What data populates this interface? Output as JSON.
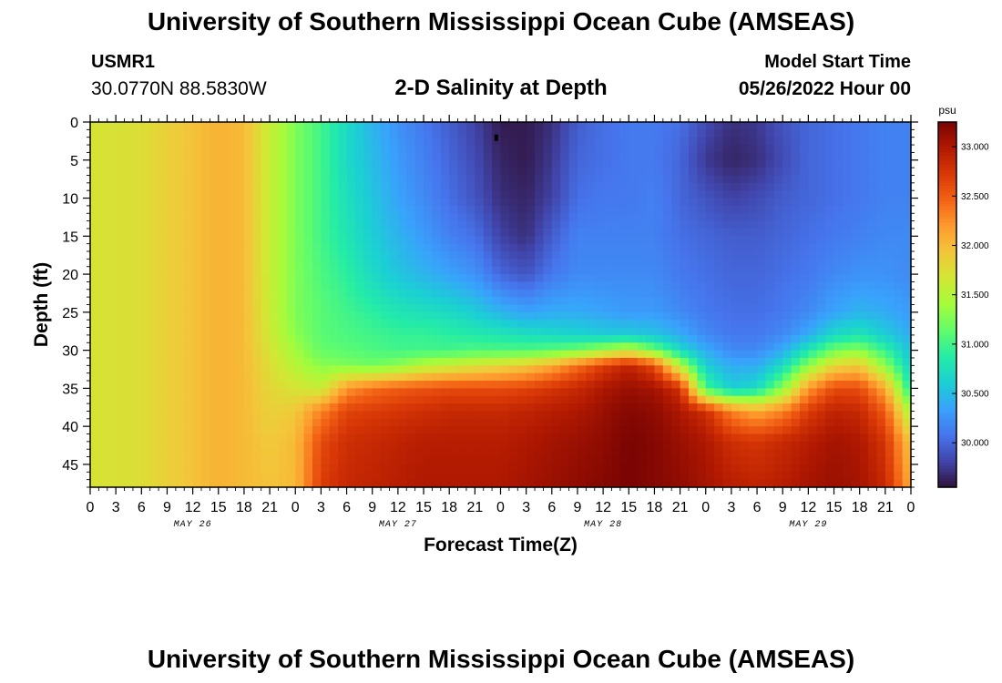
{
  "header": {
    "title": "University of Southern Mississippi Ocean Cube (AMSEAS)",
    "station_id": "USMR1",
    "station_coords": "30.0770N  88.5830W",
    "chart_title": "2-D Salinity at Depth",
    "model_label": "Model Start Time",
    "model_time": "05/26/2022 Hour 00"
  },
  "footer": {
    "title": "University of Southern Mississippi Ocean Cube (AMSEAS)"
  },
  "chart_data": {
    "type": "heatmap",
    "title": "2-D Salinity at Depth",
    "xlabel": "Forecast Time(Z)",
    "ylabel": "Depth (ft)",
    "x_unit": "hours since 05/26/2022 00Z",
    "xlim": [
      0,
      96
    ],
    "ylim": [
      0,
      48
    ],
    "y_inverted": true,
    "x_tick_values": [
      0,
      3,
      6,
      9,
      12,
      15,
      18,
      21,
      24,
      27,
      30,
      33,
      36,
      39,
      42,
      45,
      48,
      51,
      54,
      57,
      60,
      63,
      66,
      69,
      72,
      75,
      78,
      81,
      84,
      87,
      90,
      93,
      96
    ],
    "x_tick_labels": [
      "0",
      "3",
      "6",
      "9",
      "12",
      "15",
      "18",
      "21",
      "0",
      "3",
      "6",
      "9",
      "12",
      "15",
      "18",
      "21",
      "0",
      "3",
      "6",
      "9",
      "12",
      "15",
      "18",
      "21",
      "0",
      "3",
      "6",
      "9",
      "12",
      "15",
      "18",
      "21",
      "0"
    ],
    "date_labels": [
      {
        "label": "MAY 26",
        "hour": 12
      },
      {
        "label": "MAY 27",
        "hour": 36
      },
      {
        "label": "MAY 28",
        "hour": 60
      },
      {
        "label": "MAY 29",
        "hour": 84
      }
    ],
    "y_ticks": [
      "0",
      "5",
      "10",
      "15",
      "20",
      "25",
      "30",
      "35",
      "40",
      "45"
    ],
    "y_tick_values": [
      0,
      5,
      10,
      15,
      20,
      25,
      30,
      35,
      40,
      45
    ],
    "colorbar": {
      "unit": "psu",
      "min": 29.55,
      "max": 33.25,
      "tick_values": [
        30.0,
        30.5,
        31.0,
        31.5,
        32.0,
        32.5,
        33.0
      ],
      "tick_labels": [
        "30.000",
        "30.500",
        "31.000",
        "31.500",
        "32.000",
        "32.500",
        "33.000"
      ],
      "palette": [
        "#30123b",
        "#4145ab",
        "#4675ed",
        "#39a2fc",
        "#1bcfd4",
        "#24eca6",
        "#61fc6c",
        "#a4fc3b",
        "#d1e834",
        "#f3c63a",
        "#fe9b2d",
        "#f36315",
        "#d93806",
        "#b11901",
        "#7a0403"
      ]
    },
    "time_knots": [
      0,
      3,
      6,
      9,
      12,
      15,
      18,
      21,
      24,
      27,
      30,
      33,
      36,
      39,
      42,
      45,
      48,
      51,
      54,
      57,
      60,
      63,
      66,
      69,
      72,
      75,
      78,
      81,
      84,
      87,
      90,
      93,
      96
    ],
    "depth_knots": [
      0,
      5,
      10,
      15,
      20,
      25,
      28,
      30,
      32,
      35,
      38,
      42,
      48
    ],
    "salinity": [
      [
        31.7,
        31.7,
        31.7,
        31.7,
        31.7,
        31.7,
        31.7,
        31.7,
        31.7,
        31.7,
        31.7,
        31.7,
        31.7
      ],
      [
        31.72,
        31.72,
        31.72,
        31.72,
        31.72,
        31.72,
        31.72,
        31.72,
        31.72,
        31.72,
        31.72,
        31.72,
        31.72
      ],
      [
        31.75,
        31.75,
        31.75,
        31.75,
        31.75,
        31.75,
        31.75,
        31.75,
        31.75,
        31.75,
        31.75,
        31.75,
        31.75
      ],
      [
        31.85,
        31.85,
        31.85,
        31.85,
        31.85,
        31.85,
        31.85,
        31.85,
        31.85,
        31.85,
        31.85,
        31.85,
        31.85
      ],
      [
        31.95,
        31.95,
        31.95,
        31.95,
        31.95,
        31.95,
        31.95,
        31.95,
        31.95,
        31.95,
        31.95,
        31.95,
        31.95
      ],
      [
        32.05,
        32.05,
        32.05,
        32.05,
        32.05,
        32.05,
        32.05,
        32.05,
        32.05,
        32.05,
        32.05,
        32.05,
        32.05
      ],
      [
        32.0,
        32.0,
        32.0,
        32.0,
        32.0,
        32.0,
        32.0,
        32.0,
        32.0,
        32.0,
        32.0,
        32.0,
        32.0
      ],
      [
        31.6,
        31.6,
        31.6,
        31.6,
        31.6,
        31.62,
        31.65,
        31.7,
        31.75,
        31.8,
        31.85,
        31.9,
        31.95
      ],
      [
        31.25,
        31.25,
        31.25,
        31.25,
        31.25,
        31.25,
        31.3,
        31.4,
        31.5,
        31.7,
        31.9,
        32.0,
        32.0
      ],
      [
        31.0,
        31.0,
        31.0,
        31.0,
        31.05,
        31.1,
        31.1,
        31.15,
        31.3,
        31.6,
        32.3,
        32.6,
        32.7
      ],
      [
        30.7,
        30.7,
        30.75,
        30.8,
        30.9,
        31.0,
        31.05,
        31.1,
        31.25,
        32.2,
        32.65,
        32.8,
        32.85
      ],
      [
        30.45,
        30.5,
        30.55,
        30.6,
        30.7,
        30.9,
        31.0,
        31.05,
        31.2,
        32.4,
        32.7,
        32.85,
        32.9
      ],
      [
        30.25,
        30.3,
        30.35,
        30.45,
        30.55,
        30.8,
        30.95,
        31.0,
        31.3,
        32.5,
        32.75,
        32.9,
        32.95
      ],
      [
        30.1,
        30.15,
        30.2,
        30.3,
        30.45,
        30.75,
        30.95,
        31.0,
        31.5,
        32.55,
        32.8,
        32.95,
        33.0
      ],
      [
        29.95,
        30.0,
        30.05,
        30.15,
        30.35,
        30.7,
        30.9,
        31.0,
        31.6,
        32.6,
        32.85,
        32.95,
        33.0
      ],
      [
        29.8,
        29.85,
        29.9,
        30.05,
        30.25,
        30.6,
        30.85,
        31.05,
        31.7,
        32.6,
        32.85,
        32.95,
        33.0
      ],
      [
        29.6,
        29.65,
        29.7,
        29.8,
        30.0,
        30.45,
        30.8,
        31.05,
        31.8,
        32.6,
        32.85,
        32.95,
        33.0
      ],
      [
        29.6,
        29.6,
        29.65,
        29.7,
        29.9,
        30.35,
        30.75,
        31.05,
        31.9,
        32.65,
        32.9,
        33.0,
        33.05
      ],
      [
        29.7,
        29.75,
        29.8,
        29.95,
        30.1,
        30.4,
        30.7,
        31.1,
        32.1,
        32.75,
        32.95,
        33.05,
        33.1
      ],
      [
        29.95,
        30.0,
        30.05,
        30.15,
        30.2,
        30.4,
        30.65,
        31.2,
        32.4,
        32.85,
        33.0,
        33.1,
        33.15
      ],
      [
        30.05,
        30.05,
        30.1,
        30.15,
        30.2,
        30.35,
        30.6,
        31.4,
        32.7,
        33.0,
        33.1,
        33.15,
        33.2
      ],
      [
        30.1,
        30.1,
        30.1,
        30.15,
        30.2,
        30.3,
        30.6,
        31.6,
        32.9,
        33.1,
        33.2,
        33.25,
        33.25
      ],
      [
        30.1,
        30.1,
        30.15,
        30.15,
        30.2,
        30.3,
        30.55,
        31.2,
        32.6,
        33.05,
        33.15,
        33.2,
        33.2
      ],
      [
        30.05,
        30.0,
        30.0,
        30.05,
        30.1,
        30.2,
        30.4,
        30.7,
        31.5,
        32.8,
        33.0,
        33.1,
        33.15
      ],
      [
        29.85,
        29.75,
        29.9,
        30.0,
        30.05,
        30.1,
        30.2,
        30.4,
        30.6,
        31.0,
        32.8,
        33.0,
        33.05
      ],
      [
        29.7,
        29.65,
        29.8,
        29.95,
        30.0,
        30.05,
        30.1,
        30.2,
        30.4,
        30.6,
        32.3,
        32.8,
        32.95
      ],
      [
        29.75,
        29.7,
        29.85,
        29.95,
        30.0,
        30.05,
        30.1,
        30.2,
        30.4,
        30.7,
        32.1,
        32.75,
        32.9
      ],
      [
        29.9,
        29.85,
        29.95,
        30.0,
        30.05,
        30.1,
        30.2,
        30.4,
        30.7,
        31.3,
        32.3,
        32.85,
        32.95
      ],
      [
        30.0,
        30.0,
        30.0,
        30.05,
        30.1,
        30.2,
        30.4,
        30.8,
        31.3,
        32.2,
        32.7,
        32.95,
        33.05
      ],
      [
        30.05,
        30.05,
        30.05,
        30.1,
        30.2,
        30.35,
        30.7,
        31.2,
        31.8,
        32.6,
        32.9,
        33.05,
        33.1
      ],
      [
        30.1,
        30.1,
        30.1,
        30.15,
        30.25,
        30.45,
        30.8,
        31.3,
        31.9,
        32.6,
        32.85,
        33.0,
        33.05
      ],
      [
        30.15,
        30.15,
        30.15,
        30.2,
        30.25,
        30.4,
        30.6,
        30.95,
        31.3,
        32.1,
        32.5,
        32.75,
        32.85
      ],
      [
        30.15,
        30.15,
        30.15,
        30.2,
        30.2,
        30.3,
        30.4,
        30.5,
        30.6,
        30.8,
        31.4,
        31.9,
        32.1
      ]
    ],
    "marker": {
      "hour": 47.5,
      "depth": 2
    }
  }
}
